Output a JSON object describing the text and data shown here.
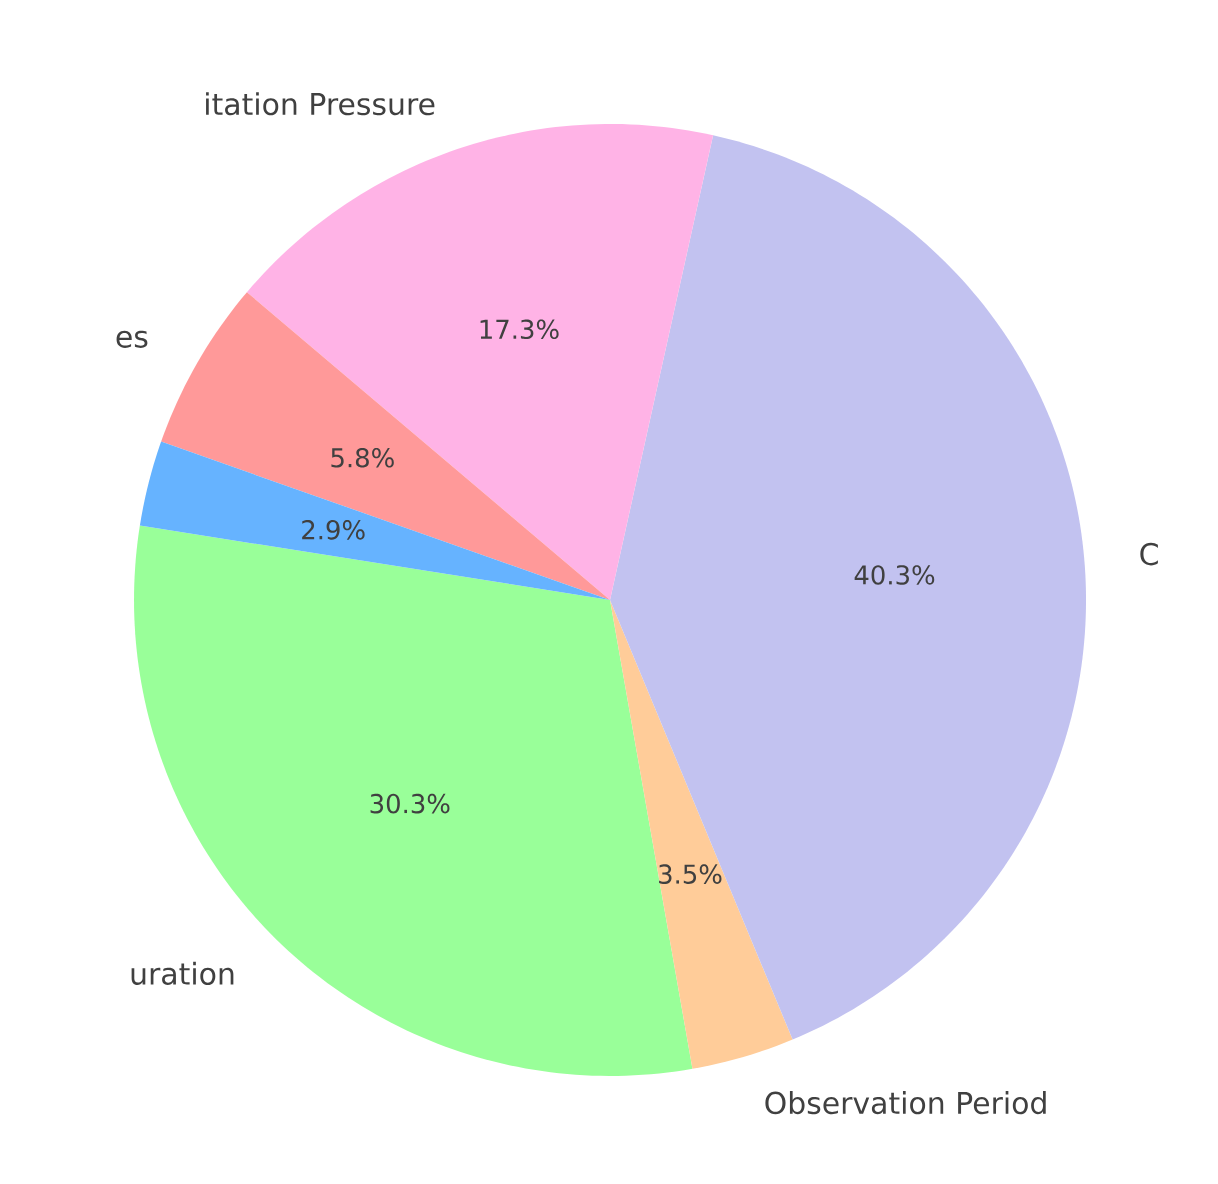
{
  "chart_data": {
    "type": "pie",
    "categories": [
      "uration",
      "Observation Period",
      "C",
      "itation Pressure",
      "es",
      null
    ],
    "values": [
      30.3,
      3.5,
      40.3,
      17.3,
      5.8,
      2.9
    ],
    "colors": [
      "#99ff99",
      "#ffcc99",
      "#c2c2f0",
      "#ffb3e6",
      "#ff9999",
      "#66b3ff"
    ],
    "value_labels": [
      "30.3%",
      "3.5%",
      "40.3%",
      "17.3%",
      "5.8%",
      "2.9%"
    ]
  }
}
